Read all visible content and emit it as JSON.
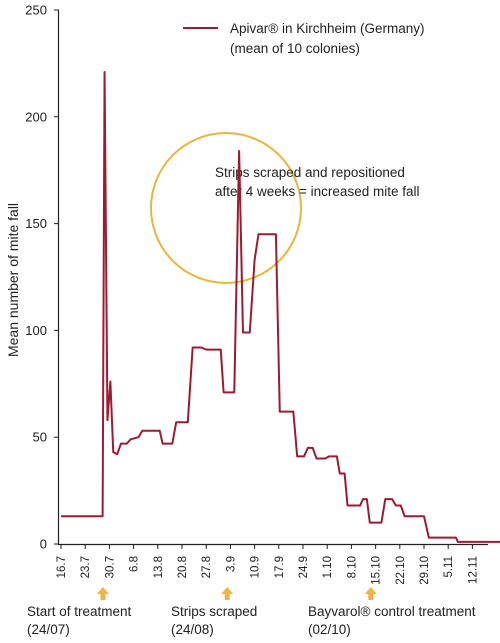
{
  "chart_data": {
    "type": "line",
    "title": "",
    "xlabel": "",
    "ylabel": "Mean number of mite fall",
    "ylim": [
      0,
      250
    ],
    "y_ticks": [
      "0",
      "50",
      "100",
      "150",
      "200",
      "250"
    ],
    "x_ticks": [
      "16.7",
      "23.7",
      "30.7",
      "6.8",
      "13.8",
      "20.8",
      "27.8",
      "3.9",
      "10.9",
      "17.9",
      "24.9",
      "1.10",
      "8.10",
      "15.10",
      "22.10",
      "29.10",
      "5.11",
      "12.11"
    ],
    "grid": false,
    "legend_position": "top-right",
    "series": [
      {
        "name": "Apivar® in Kirchheim (Germany)",
        "name_line2": "(mean of 10 colonies)",
        "color": "#9b1b30",
        "points": [
          [
            0.0,
            13
          ],
          [
            4.0,
            13
          ],
          [
            4.3,
            13
          ],
          [
            4.5,
            221
          ],
          [
            4.8,
            58
          ],
          [
            5.1,
            76
          ],
          [
            5.4,
            43
          ],
          [
            5.8,
            42
          ],
          [
            6.2,
            47
          ],
          [
            6.8,
            47
          ],
          [
            7.2,
            49
          ],
          [
            8.0,
            50
          ],
          [
            8.4,
            53
          ],
          [
            10.2,
            53
          ],
          [
            10.5,
            47
          ],
          [
            11.5,
            47
          ],
          [
            11.9,
            57
          ],
          [
            13.1,
            57
          ],
          [
            13.6,
            92
          ],
          [
            14.5,
            92
          ],
          [
            15.0,
            91
          ],
          [
            16.5,
            91
          ],
          [
            16.8,
            71
          ],
          [
            17.9,
            71
          ],
          [
            18.4,
            184
          ],
          [
            18.8,
            99
          ],
          [
            19.5,
            99
          ],
          [
            20.0,
            133
          ],
          [
            20.4,
            145
          ],
          [
            22.2,
            145
          ],
          [
            22.6,
            62
          ],
          [
            24.0,
            62
          ],
          [
            24.4,
            41
          ],
          [
            25.1,
            41
          ],
          [
            25.5,
            45
          ],
          [
            26.0,
            45
          ],
          [
            26.4,
            40
          ],
          [
            27.3,
            40
          ],
          [
            27.7,
            41
          ],
          [
            28.5,
            41
          ],
          [
            28.8,
            33
          ],
          [
            29.3,
            33
          ],
          [
            29.6,
            18
          ],
          [
            30.9,
            18
          ],
          [
            31.2,
            21
          ],
          [
            31.6,
            21
          ],
          [
            31.9,
            10
          ],
          [
            33.1,
            10
          ],
          [
            33.5,
            21
          ],
          [
            34.2,
            21
          ],
          [
            34.6,
            18
          ],
          [
            35.1,
            18
          ],
          [
            35.5,
            13
          ],
          [
            37.5,
            13
          ],
          [
            38.0,
            3
          ],
          [
            40.8,
            3
          ],
          [
            41.0,
            1
          ],
          [
            45.5,
            1
          ]
        ]
      }
    ],
    "annotations": [
      {
        "line1": "Strips scraped and repositioned",
        "line2": "after 4 weeks = increased mite fall"
      }
    ],
    "events": [
      {
        "line1": "Start of treatment",
        "line2": "(24/07)",
        "x": 4.33
      },
      {
        "line1": "Strips scraped",
        "line2": "(24/08)",
        "x": 17.17
      },
      {
        "line1": "Bayvarol® control treatment",
        "line2": "(02/10)",
        "x": 32.0
      }
    ],
    "colors": {
      "series": "#9b1b30",
      "highlight_circle": "#e9b53a",
      "event_arrow": "#f0b24b",
      "axis": "#222222"
    }
  }
}
